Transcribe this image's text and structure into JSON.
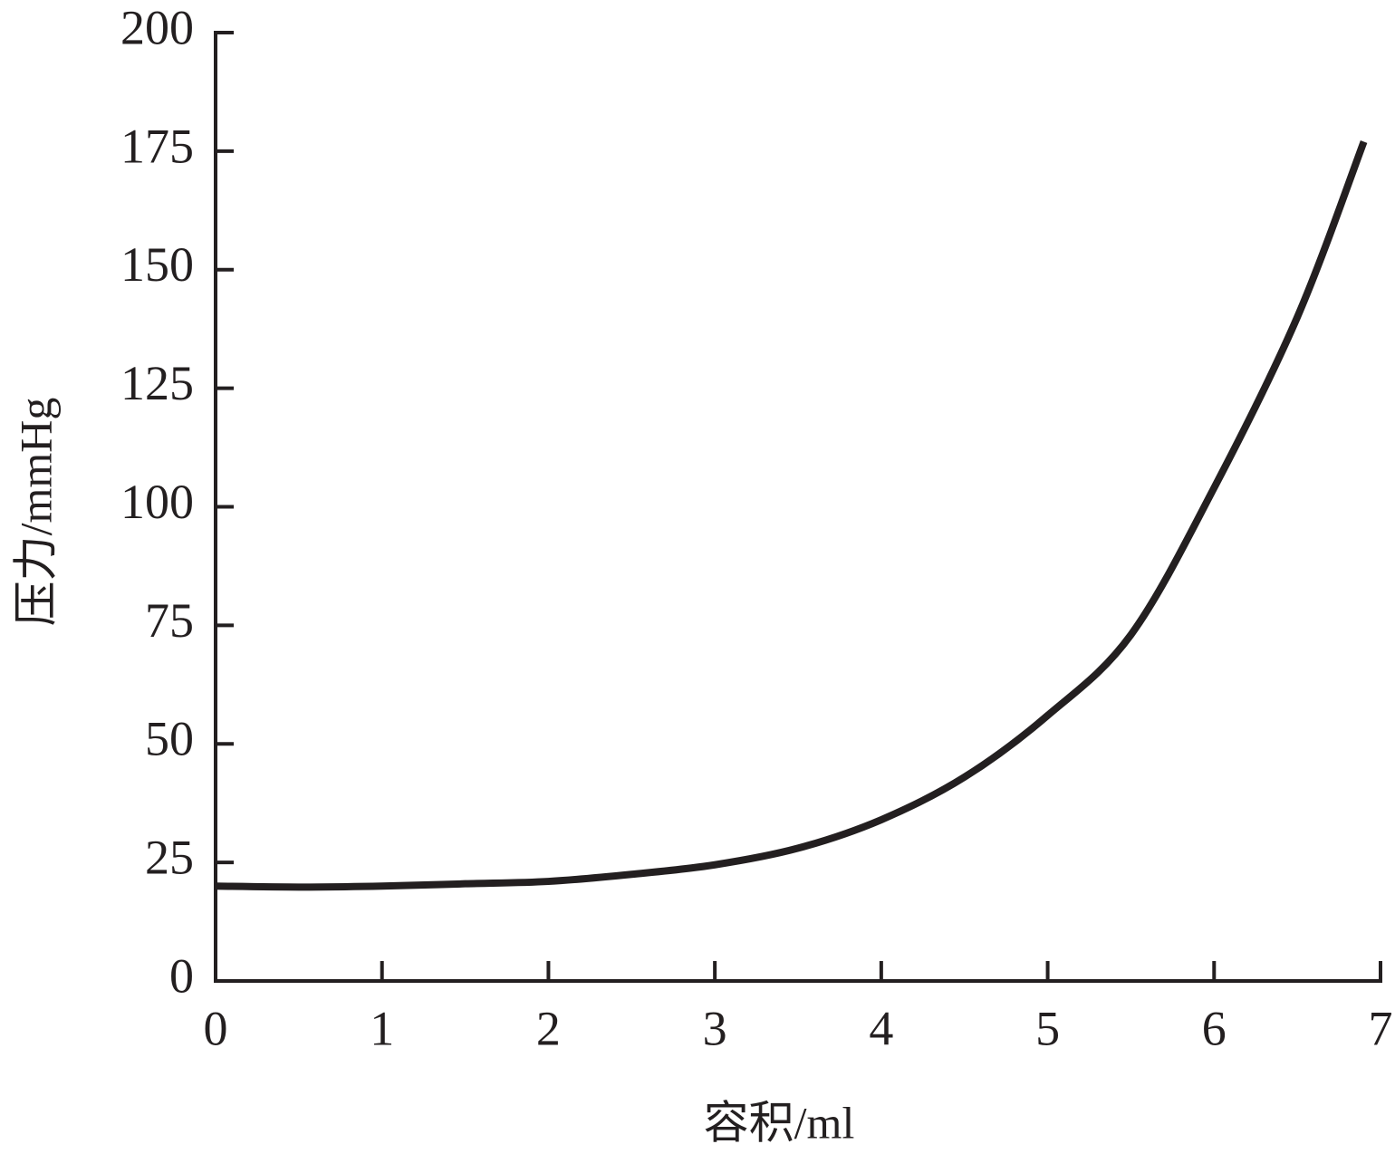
{
  "chart_data": {
    "type": "line",
    "xlabel": "容积/ml",
    "ylabel": "压力/mmHg",
    "x": [
      0,
      0.5,
      1,
      1.5,
      2,
      2.5,
      3,
      3.5,
      4,
      4.5,
      5,
      5.5,
      6,
      6.5,
      6.9
    ],
    "values": [
      20,
      19.8,
      20,
      20.5,
      21,
      22.5,
      24.5,
      28,
      34,
      43,
      56,
      73,
      104,
      140,
      177
    ],
    "color": "#231f20",
    "xlim": [
      0,
      7
    ],
    "xticks": [
      0,
      1,
      2,
      3,
      4,
      5,
      6,
      7
    ],
    "ylim": [
      0,
      200
    ],
    "yticks": [
      0,
      25,
      50,
      75,
      100,
      125,
      150,
      175,
      200
    ],
    "grid": false
  }
}
